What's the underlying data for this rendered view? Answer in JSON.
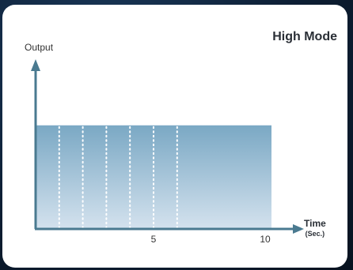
{
  "chart_data": {
    "type": "area",
    "title": "High Mode",
    "xlabel": "Time",
    "xlabel_unit": "(Sec.)",
    "ylabel": "Output",
    "x": [
      0,
      10
    ],
    "values": [
      1,
      1
    ],
    "xlim": [
      0,
      10
    ],
    "ylim": [
      0,
      1.6
    ],
    "x_ticks": [
      5,
      10
    ],
    "dotted_gridlines_x": [
      1,
      2,
      3,
      4,
      5,
      6
    ],
    "fill_color_top": "#7aa8c4",
    "fill_color_bottom": "#d4e2ee",
    "axis_color": "#4a7a90",
    "gridline_color": "#ffffff"
  }
}
